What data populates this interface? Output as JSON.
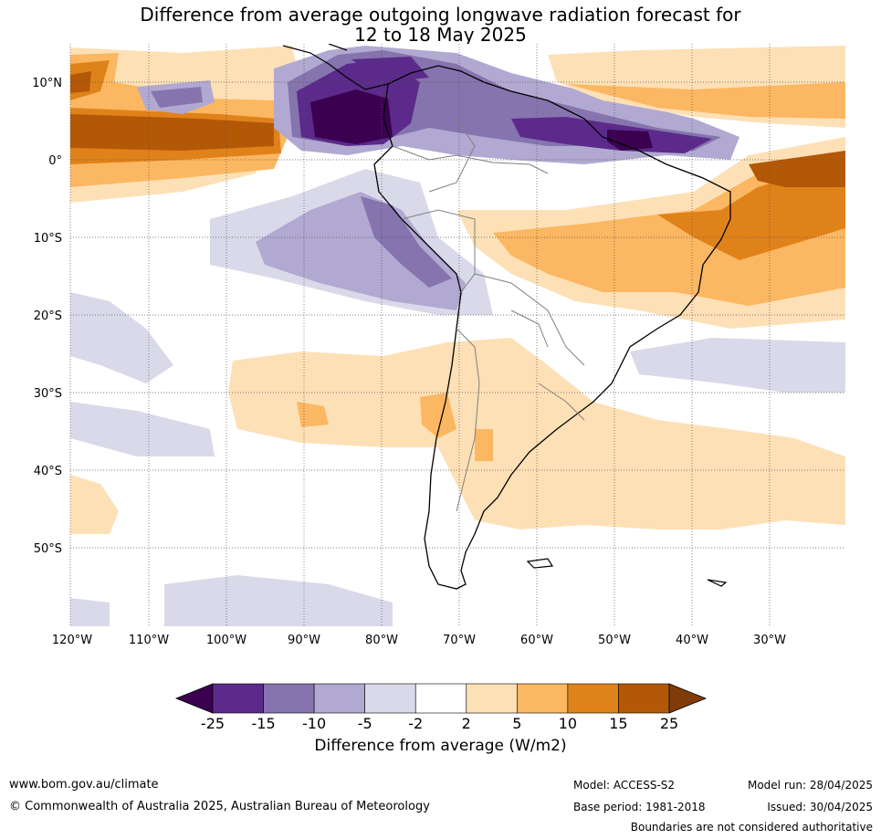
{
  "title": {
    "line1": "Difference from average outgoing longwave radiation forecast for",
    "line2": "12 to 18 May 2025"
  },
  "map": {
    "lat_labels": [
      "10°N",
      "0°",
      "10°S",
      "20°S",
      "30°S",
      "40°S",
      "50°S"
    ],
    "lon_labels": [
      "120°W",
      "110°W",
      "100°W",
      "90°W",
      "80°W",
      "70°W",
      "60°W",
      "50°W",
      "40°W",
      "30°W"
    ],
    "colors": {
      "land_outline": "#000000",
      "border": "#808080",
      "grid": "#555555"
    }
  },
  "colorbar": {
    "title": "Difference from average (W/m2)",
    "ticks": [
      "-25",
      "-15",
      "-10",
      "-5",
      "-2",
      "2",
      "5",
      "10",
      "15",
      "25"
    ],
    "colors": [
      "#3b0050",
      "#5b2a8a",
      "#8574ae",
      "#b1a9d1",
      "#d9d9ea",
      "#ffffff",
      "#fee0b6",
      "#fbb761",
      "#e0821a",
      "#b35806",
      "#7f3b08"
    ]
  },
  "footer": {
    "website": "www.bom.gov.au/climate",
    "copyright": "© Commonwealth of Australia 2025, Australian Bureau of Meteorology",
    "model": "Model: ACCESS-S2",
    "base_period": "Base period: 1981-2018",
    "model_run": "Model run: 28/04/2025",
    "issued": "Issued: 30/04/2025",
    "disclaimer": "Boundaries are not considered authoritative"
  }
}
